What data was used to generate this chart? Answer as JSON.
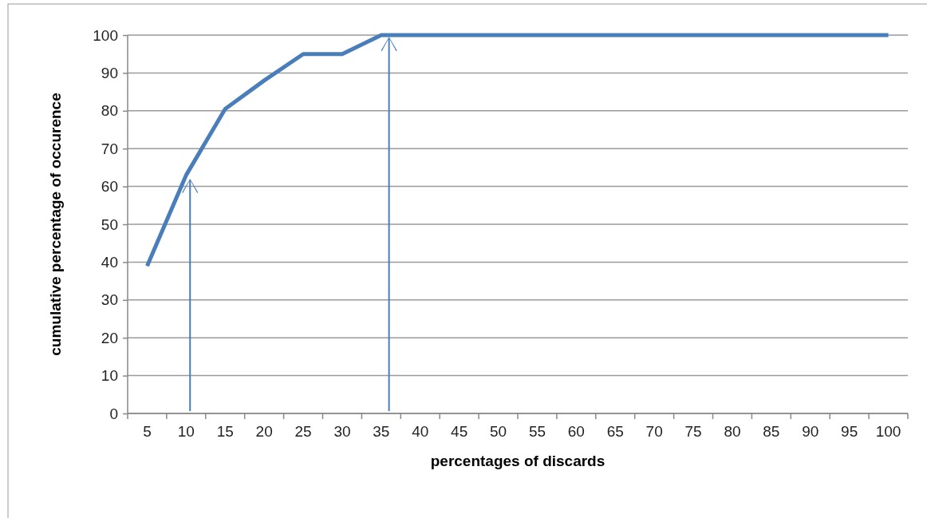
{
  "chart_data": {
    "type": "line",
    "xlabel": "percentages of discards",
    "ylabel": "cumulative percentage of occurence",
    "categories": [
      "5",
      "10",
      "15",
      "20",
      "25",
      "30",
      "35",
      "40",
      "45",
      "50",
      "55",
      "60",
      "65",
      "70",
      "75",
      "80",
      "85",
      "90",
      "95",
      "100"
    ],
    "series": [
      {
        "color": "#4a7ebb",
        "values": [
          39,
          63,
          80.5,
          88,
          95,
          95,
          100,
          100,
          100,
          100,
          100,
          100,
          100,
          100,
          100,
          100,
          100,
          100,
          100,
          100
        ]
      }
    ],
    "ylim": [
      0,
      100
    ],
    "yticks": [
      0,
      10,
      20,
      30,
      40,
      50,
      60,
      70,
      80,
      90,
      100
    ],
    "grid": "y",
    "marker": "none",
    "line_style": "solid"
  }
}
